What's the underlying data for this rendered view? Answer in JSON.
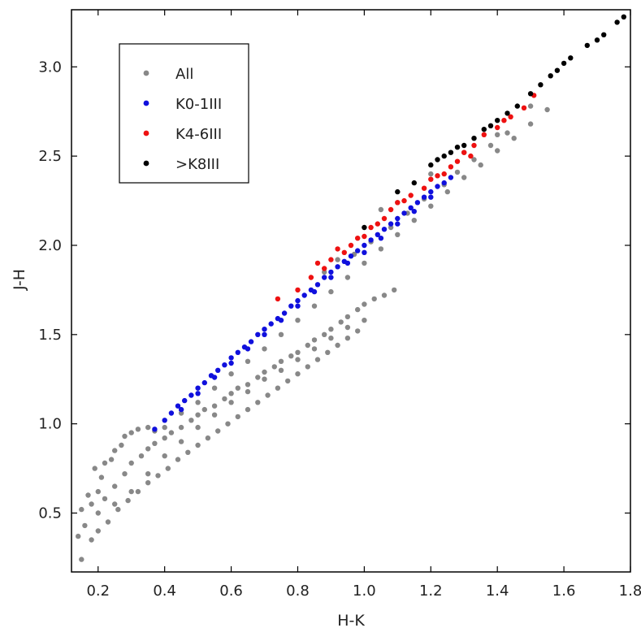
{
  "chart_data": {
    "type": "scatter",
    "xlabel": "H-K",
    "ylabel": "J-H",
    "xlim": [
      0.12,
      1.8
    ],
    "ylim": [
      0.17,
      3.32
    ],
    "xticks": [
      "0.2",
      "0.4",
      "0.6",
      "0.8",
      "1.0",
      "1.2",
      "1.4",
      "1.6",
      "1.8"
    ],
    "yticks": [
      "0.5",
      "1.0",
      "1.5",
      "2.0",
      "2.5",
      "3.0"
    ],
    "grid": false,
    "legend_position": "top-left",
    "series": [
      {
        "name": "All",
        "color": "#888888",
        "points": [
          [
            0.15,
            0.24
          ],
          [
            0.14,
            0.37
          ],
          [
            0.16,
            0.43
          ],
          [
            0.15,
            0.52
          ],
          [
            0.18,
            0.55
          ],
          [
            0.17,
            0.6
          ],
          [
            0.2,
            0.62
          ],
          [
            0.21,
            0.7
          ],
          [
            0.19,
            0.75
          ],
          [
            0.22,
            0.78
          ],
          [
            0.24,
            0.8
          ],
          [
            0.25,
            0.85
          ],
          [
            0.27,
            0.88
          ],
          [
            0.28,
            0.93
          ],
          [
            0.3,
            0.95
          ],
          [
            0.32,
            0.97
          ],
          [
            0.35,
            0.98
          ],
          [
            0.37,
            0.96
          ],
          [
            0.2,
            0.5
          ],
          [
            0.22,
            0.58
          ],
          [
            0.25,
            0.65
          ],
          [
            0.28,
            0.72
          ],
          [
            0.3,
            0.78
          ],
          [
            0.33,
            0.82
          ],
          [
            0.35,
            0.86
          ],
          [
            0.37,
            0.89
          ],
          [
            0.4,
            0.92
          ],
          [
            0.42,
            0.95
          ],
          [
            0.45,
            0.98
          ],
          [
            0.48,
            1.02
          ],
          [
            0.5,
            1.05
          ],
          [
            0.52,
            1.08
          ],
          [
            0.55,
            1.1
          ],
          [
            0.58,
            1.14
          ],
          [
            0.6,
            1.17
          ],
          [
            0.62,
            1.2
          ],
          [
            0.65,
            1.22
          ],
          [
            0.68,
            1.26
          ],
          [
            0.7,
            1.29
          ],
          [
            0.73,
            1.32
          ],
          [
            0.75,
            1.35
          ],
          [
            0.78,
            1.38
          ],
          [
            0.8,
            1.4
          ],
          [
            0.83,
            1.44
          ],
          [
            0.85,
            1.47
          ],
          [
            0.88,
            1.5
          ],
          [
            0.9,
            1.53
          ],
          [
            0.93,
            1.57
          ],
          [
            0.95,
            1.6
          ],
          [
            0.98,
            1.64
          ],
          [
            1.0,
            1.67
          ],
          [
            1.03,
            1.7
          ],
          [
            1.06,
            1.72
          ],
          [
            1.09,
            1.75
          ],
          [
            0.18,
            0.35
          ],
          [
            0.2,
            0.4
          ],
          [
            0.23,
            0.45
          ],
          [
            0.26,
            0.52
          ],
          [
            0.29,
            0.57
          ],
          [
            0.32,
            0.62
          ],
          [
            0.35,
            0.67
          ],
          [
            0.38,
            0.71
          ],
          [
            0.41,
            0.75
          ],
          [
            0.44,
            0.8
          ],
          [
            0.47,
            0.84
          ],
          [
            0.5,
            0.88
          ],
          [
            0.53,
            0.92
          ],
          [
            0.56,
            0.96
          ],
          [
            0.59,
            1.0
          ],
          [
            0.62,
            1.04
          ],
          [
            0.65,
            1.08
          ],
          [
            0.68,
            1.12
          ],
          [
            0.71,
            1.16
          ],
          [
            0.74,
            1.2
          ],
          [
            0.77,
            1.24
          ],
          [
            0.8,
            1.28
          ],
          [
            0.83,
            1.32
          ],
          [
            0.86,
            1.36
          ],
          [
            0.89,
            1.4
          ],
          [
            0.92,
            1.44
          ],
          [
            0.95,
            1.48
          ],
          [
            0.98,
            1.52
          ],
          [
            0.25,
            0.55
          ],
          [
            0.3,
            0.62
          ],
          [
            0.35,
            0.72
          ],
          [
            0.4,
            0.82
          ],
          [
            0.45,
            0.9
          ],
          [
            0.5,
            0.98
          ],
          [
            0.55,
            1.05
          ],
          [
            0.6,
            1.12
          ],
          [
            0.65,
            1.18
          ],
          [
            0.7,
            1.25
          ],
          [
            0.75,
            1.3
          ],
          [
            0.8,
            1.36
          ],
          [
            0.85,
            1.42
          ],
          [
            0.9,
            1.48
          ],
          [
            0.95,
            1.54
          ],
          [
            1.0,
            1.58
          ],
          [
            0.4,
            0.98
          ],
          [
            0.45,
            1.06
          ],
          [
            0.5,
            1.12
          ],
          [
            0.55,
            1.2
          ],
          [
            0.6,
            1.28
          ],
          [
            0.65,
            1.35
          ],
          [
            0.7,
            1.42
          ],
          [
            0.75,
            1.5
          ],
          [
            0.8,
            1.58
          ],
          [
            0.85,
            1.66
          ],
          [
            0.9,
            1.74
          ],
          [
            0.95,
            1.82
          ],
          [
            1.0,
            1.9
          ],
          [
            1.05,
            1.98
          ],
          [
            1.1,
            2.06
          ],
          [
            1.15,
            2.14
          ],
          [
            1.2,
            2.22
          ],
          [
            1.25,
            2.3
          ],
          [
            1.3,
            2.38
          ],
          [
            1.35,
            2.45
          ],
          [
            1.4,
            2.53
          ],
          [
            1.45,
            2.6
          ],
          [
            1.5,
            2.68
          ],
          [
            1.55,
            2.76
          ],
          [
            0.88,
            1.85
          ],
          [
            0.92,
            1.92
          ],
          [
            0.97,
            1.95
          ],
          [
            1.02,
            2.02
          ],
          [
            1.08,
            2.1
          ],
          [
            1.13,
            2.18
          ],
          [
            1.18,
            2.26
          ],
          [
            1.24,
            2.34
          ],
          [
            1.28,
            2.41
          ],
          [
            1.33,
            2.48
          ],
          [
            1.38,
            2.56
          ],
          [
            1.43,
            2.63
          ],
          [
            1.05,
            2.2
          ],
          [
            1.1,
            2.24
          ],
          [
            1.2,
            2.4
          ],
          [
            1.3,
            2.52
          ],
          [
            1.4,
            2.62
          ],
          [
            1.5,
            2.78
          ]
        ]
      },
      {
        "name": "K0-1III",
        "color": "#1010dd",
        "points": [
          [
            0.37,
            0.97
          ],
          [
            0.4,
            1.02
          ],
          [
            0.42,
            1.06
          ],
          [
            0.44,
            1.1
          ],
          [
            0.46,
            1.13
          ],
          [
            0.48,
            1.16
          ],
          [
            0.5,
            1.2
          ],
          [
            0.52,
            1.23
          ],
          [
            0.54,
            1.27
          ],
          [
            0.56,
            1.3
          ],
          [
            0.58,
            1.33
          ],
          [
            0.6,
            1.37
          ],
          [
            0.62,
            1.4
          ],
          [
            0.64,
            1.43
          ],
          [
            0.66,
            1.46
          ],
          [
            0.68,
            1.5
          ],
          [
            0.7,
            1.53
          ],
          [
            0.72,
            1.56
          ],
          [
            0.74,
            1.59
          ],
          [
            0.76,
            1.62
          ],
          [
            0.78,
            1.66
          ],
          [
            0.8,
            1.69
          ],
          [
            0.82,
            1.72
          ],
          [
            0.84,
            1.75
          ],
          [
            0.86,
            1.78
          ],
          [
            0.88,
            1.82
          ],
          [
            0.9,
            1.85
          ],
          [
            0.92,
            1.88
          ],
          [
            0.94,
            1.91
          ],
          [
            0.96,
            1.94
          ],
          [
            0.98,
            1.97
          ],
          [
            1.0,
            2.0
          ],
          [
            1.02,
            2.03
          ],
          [
            1.04,
            2.06
          ],
          [
            1.06,
            2.09
          ],
          [
            1.08,
            2.12
          ],
          [
            1.1,
            2.15
          ],
          [
            1.12,
            2.18
          ],
          [
            1.14,
            2.21
          ],
          [
            1.16,
            2.24
          ],
          [
            1.18,
            2.27
          ],
          [
            1.2,
            2.3
          ],
          [
            1.22,
            2.33
          ],
          [
            1.24,
            2.35
          ],
          [
            1.26,
            2.38
          ],
          [
            0.45,
            1.08
          ],
          [
            0.55,
            1.26
          ],
          [
            0.65,
            1.42
          ],
          [
            0.75,
            1.58
          ],
          [
            0.85,
            1.74
          ],
          [
            0.95,
            1.9
          ],
          [
            1.05,
            2.04
          ],
          [
            1.15,
            2.19
          ],
          [
            0.5,
            1.17
          ],
          [
            0.6,
            1.34
          ],
          [
            0.7,
            1.5
          ],
          [
            0.8,
            1.66
          ],
          [
            0.9,
            1.82
          ],
          [
            1.0,
            1.96
          ],
          [
            1.1,
            2.12
          ],
          [
            1.2,
            2.27
          ]
        ]
      },
      {
        "name": "K4-6III",
        "color": "#ee1111",
        "points": [
          [
            0.74,
            1.7
          ],
          [
            0.8,
            1.75
          ],
          [
            0.84,
            1.82
          ],
          [
            0.88,
            1.87
          ],
          [
            0.9,
            1.92
          ],
          [
            0.94,
            1.96
          ],
          [
            0.96,
            2.0
          ],
          [
            1.0,
            2.05
          ],
          [
            1.02,
            2.1
          ],
          [
            1.06,
            2.15
          ],
          [
            1.08,
            2.2
          ],
          [
            1.1,
            2.24
          ],
          [
            1.14,
            2.28
          ],
          [
            1.18,
            2.32
          ],
          [
            1.2,
            2.37
          ],
          [
            1.24,
            2.4
          ],
          [
            1.26,
            2.44
          ],
          [
            1.28,
            2.47
          ],
          [
            1.3,
            2.52
          ],
          [
            1.33,
            2.56
          ],
          [
            1.36,
            2.62
          ],
          [
            1.4,
            2.66
          ],
          [
            1.44,
            2.72
          ],
          [
            1.48,
            2.77
          ],
          [
            1.51,
            2.84
          ],
          [
            0.86,
            1.9
          ],
          [
            0.92,
            1.98
          ],
          [
            0.98,
            2.04
          ],
          [
            1.04,
            2.12
          ],
          [
            1.12,
            2.25
          ],
          [
            1.22,
            2.39
          ],
          [
            1.32,
            2.5
          ],
          [
            1.42,
            2.7
          ]
        ]
      },
      {
        "name": ">K8III",
        "color": "#000000",
        "points": [
          [
            1.0,
            2.1
          ],
          [
            1.1,
            2.3
          ],
          [
            1.2,
            2.45
          ],
          [
            1.22,
            2.48
          ],
          [
            1.24,
            2.5
          ],
          [
            1.26,
            2.52
          ],
          [
            1.3,
            2.56
          ],
          [
            1.33,
            2.6
          ],
          [
            1.36,
            2.65
          ],
          [
            1.38,
            2.67
          ],
          [
            1.4,
            2.7
          ],
          [
            1.43,
            2.74
          ],
          [
            1.46,
            2.78
          ],
          [
            1.5,
            2.85
          ],
          [
            1.53,
            2.9
          ],
          [
            1.56,
            2.95
          ],
          [
            1.58,
            2.98
          ],
          [
            1.6,
            3.02
          ],
          [
            1.62,
            3.05
          ],
          [
            1.67,
            3.12
          ],
          [
            1.7,
            3.15
          ],
          [
            1.72,
            3.18
          ],
          [
            1.76,
            3.25
          ],
          [
            1.78,
            3.28
          ],
          [
            1.15,
            2.35
          ],
          [
            1.28,
            2.55
          ]
        ]
      }
    ]
  }
}
